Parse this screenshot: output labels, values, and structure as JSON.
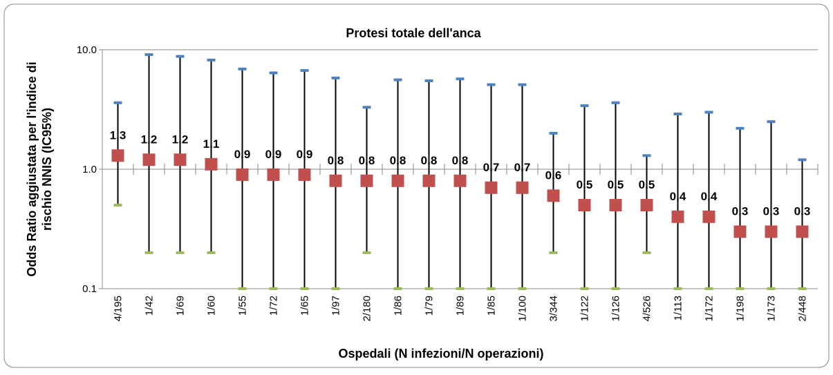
{
  "chart_data": {
    "type": "errorpoint",
    "title": "Protesi totale dell'anca",
    "ylabel": [
      "Odds Ratio aggiustata per l'indice di",
      "rischio NNIS (IC95%)"
    ],
    "xlabel": "Ospedali (N infezioni/N operazioni)",
    "categories": [
      "4/195",
      "1/42",
      "1/69",
      "1/60",
      "1/55",
      "1/72",
      "1/65",
      "1/97",
      "2/180",
      "1/86",
      "1/79",
      "1/89",
      "1/85",
      "1/100",
      "3/344",
      "1/122",
      "1/126",
      "4/526",
      "1/113",
      "1/172",
      "1/198",
      "1/173",
      "2/448"
    ],
    "values": [
      1.3,
      1.2,
      1.2,
      1.1,
      0.9,
      0.9,
      0.9,
      0.8,
      0.8,
      0.8,
      0.8,
      0.8,
      0.7,
      0.7,
      0.6,
      0.5,
      0.5,
      0.5,
      0.4,
      0.4,
      0.3,
      0.3,
      0.3
    ],
    "upper": [
      3.6,
      9.1,
      8.8,
      8.2,
      6.9,
      6.4,
      6.7,
      5.8,
      3.3,
      5.6,
      5.5,
      5.7,
      5.1,
      5.1,
      2.0,
      3.4,
      3.6,
      1.3,
      2.9,
      3.0,
      2.2,
      2.5,
      1.2
    ],
    "lower": [
      0.5,
      0.2,
      0.2,
      0.2,
      0.1,
      0.1,
      0.1,
      0.1,
      0.2,
      0.1,
      0.1,
      0.1,
      0.1,
      0.1,
      0.2,
      0.1,
      0.1,
      0.2,
      0.1,
      0.1,
      0.1,
      0.1,
      0.1
    ],
    "color": "#c0504d",
    "upper_color": "#4f81bd",
    "lower_color": "#9bbb59",
    "ylim": [
      0.1,
      10
    ],
    "log_y": true,
    "yticks": [
      {
        "value": 10,
        "label": "10.0"
      },
      {
        "value": 1,
        "label": "1.0"
      },
      0.1
    ],
    "grid": true
  }
}
